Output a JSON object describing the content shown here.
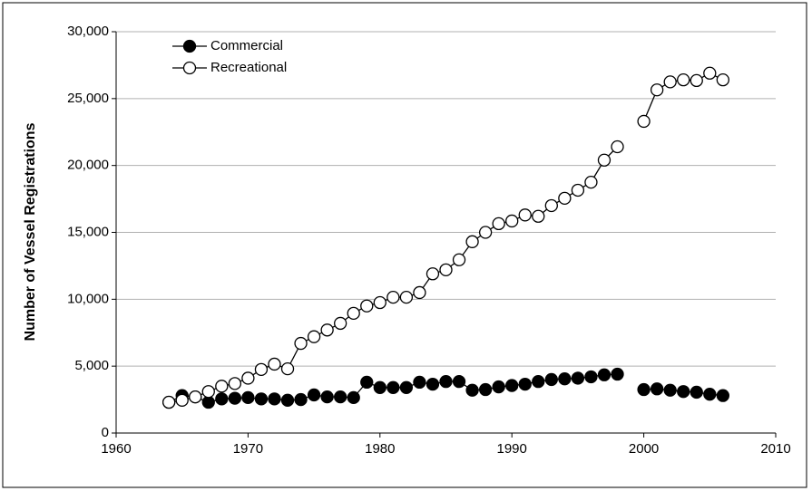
{
  "chart_data": {
    "type": "line",
    "y_label": "Number of Vessel Registrations",
    "x": [
      1964,
      1965,
      1966,
      1967,
      1968,
      1969,
      1970,
      1971,
      1972,
      1973,
      1974,
      1975,
      1976,
      1977,
      1978,
      1979,
      1980,
      1981,
      1982,
      1983,
      1984,
      1985,
      1986,
      1987,
      1988,
      1989,
      1990,
      1991,
      1992,
      1993,
      1994,
      1995,
      1996,
      1997,
      1998,
      1999,
      2000,
      2001,
      2002,
      2003,
      2004,
      2005,
      2006
    ],
    "series": [
      {
        "name": "Commercial",
        "color": "#000000",
        "marker_fill": "#000000",
        "values": [
          2300,
          2800,
          2700,
          2300,
          2550,
          2600,
          2650,
          2550,
          2550,
          2450,
          2500,
          2850,
          2700,
          2700,
          2650,
          3800,
          3400,
          3400,
          3400,
          3800,
          3650,
          3850,
          3850,
          3200,
          3250,
          3450,
          3550,
          3650,
          3850,
          4000,
          4050,
          4100,
          4200,
          4350,
          4400,
          null,
          3250,
          3300,
          3200,
          3100,
          3050,
          2900,
          2800
        ]
      },
      {
        "name": "Recreational",
        "color": "#000000",
        "marker_fill": "#ffffff",
        "values": [
          2300,
          2450,
          2700,
          3100,
          3500,
          3700,
          4100,
          4750,
          5150,
          4800,
          6700,
          7200,
          7700,
          8200,
          8950,
          9500,
          9750,
          10150,
          10150,
          10500,
          11900,
          12200,
          12950,
          14300,
          15000,
          15650,
          15850,
          16300,
          16200,
          17000,
          17550,
          18150,
          18750,
          20400,
          21400,
          null,
          23300,
          25650,
          26250,
          26400,
          26350,
          26900,
          26400
        ]
      }
    ],
    "xlim": [
      1960,
      2010
    ],
    "xticks": [
      1960,
      1970,
      1980,
      1990,
      2000,
      2010
    ],
    "ylim": [
      0,
      30000
    ],
    "yticks": [
      0,
      {
        "value": 5000,
        "label": "5,000"
      },
      {
        "value": 10000,
        "label": "10,000"
      },
      {
        "value": 15000,
        "label": "15,000"
      },
      {
        "value": 20000,
        "label": "20,000"
      },
      {
        "value": 25000,
        "label": "25,000"
      },
      {
        "value": 30000,
        "label": "30,000"
      }
    ],
    "grid": true,
    "legend": "top-left"
  }
}
